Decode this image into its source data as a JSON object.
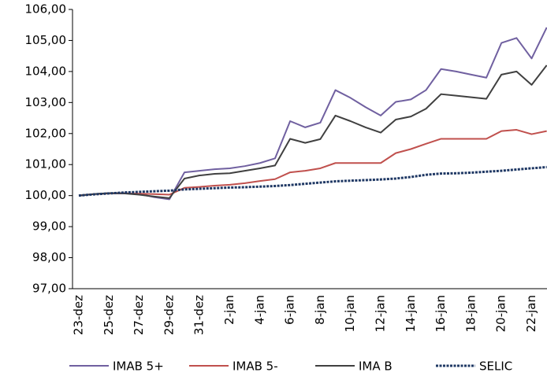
{
  "chart_data": {
    "type": "line",
    "categories": [
      "23-dez",
      null,
      "25-dez",
      null,
      "27-dez",
      null,
      "29-dez",
      null,
      "31-dez",
      null,
      "2-jan",
      null,
      "4-jan",
      null,
      "6-jan",
      null,
      "8-jan",
      null,
      "10-jan",
      null,
      "12-jan",
      null,
      "14-jan",
      null,
      "16-jan",
      null,
      "18-jan",
      null,
      "20-jan",
      null,
      "22-jan",
      null
    ],
    "series": [
      {
        "name": "IMAB 5+",
        "color": "#7060a0",
        "values": [
          100,
          100.05,
          100.08,
          100.08,
          100.05,
          99.95,
          99.88,
          100.75,
          100.8,
          100.85,
          100.88,
          100.95,
          101.05,
          101.2,
          102.4,
          102.2,
          102.35,
          103.4,
          103.15,
          102.85,
          102.58,
          103.02,
          103.1,
          103.4,
          104.08,
          104.0,
          103.9,
          103.8,
          104.92,
          105.08,
          104.42,
          105.42
        ]
      },
      {
        "name": "IMAB 5-",
        "color": "#c0504d",
        "values": [
          100,
          100.05,
          100.07,
          100.07,
          100.06,
          100.05,
          100.03,
          100.25,
          100.28,
          100.32,
          100.35,
          100.4,
          100.47,
          100.53,
          100.75,
          100.8,
          100.88,
          101.05,
          101.05,
          101.05,
          101.05,
          101.37,
          101.5,
          101.67,
          101.83,
          101.83,
          101.83,
          101.83,
          102.08,
          102.12,
          101.98,
          102.08
        ]
      },
      {
        "name": "IMA B",
        "color": "#404040",
        "values": [
          100,
          100.05,
          100.08,
          100.07,
          100.03,
          99.97,
          99.92,
          100.55,
          100.65,
          100.7,
          100.72,
          100.8,
          100.88,
          100.97,
          101.83,
          101.7,
          101.82,
          102.58,
          102.4,
          102.2,
          102.03,
          102.45,
          102.55,
          102.8,
          103.27,
          103.22,
          103.17,
          103.12,
          103.9,
          104.0,
          103.57,
          104.2
        ]
      },
      {
        "name": "SELIC",
        "color": "#1f3864",
        "dashed": true,
        "values": [
          100,
          100.04,
          100.07,
          100.1,
          100.12,
          100.14,
          100.16,
          100.2,
          100.22,
          100.24,
          100.26,
          100.27,
          100.29,
          100.31,
          100.34,
          100.38,
          100.42,
          100.46,
          100.48,
          100.5,
          100.52,
          100.55,
          100.6,
          100.67,
          100.71,
          100.72,
          100.74,
          100.77,
          100.8,
          100.84,
          100.88,
          100.92
        ]
      }
    ],
    "ylim": [
      97,
      106
    ],
    "yticks": [
      {
        "value": 97,
        "label": "97,00"
      },
      {
        "value": 98,
        "label": "98,00"
      },
      {
        "value": 99,
        "label": "99,00"
      },
      {
        "value": 100,
        "label": "100,00"
      },
      {
        "value": 101,
        "label": "101,00"
      },
      {
        "value": 102,
        "label": "102,00"
      },
      {
        "value": 103,
        "label": "103,00"
      },
      {
        "value": 104,
        "label": "104,00"
      },
      {
        "value": 105,
        "label": "105,00"
      },
      {
        "value": 106,
        "label": "106,00"
      }
    ],
    "grid": false,
    "legend": "bottom"
  }
}
